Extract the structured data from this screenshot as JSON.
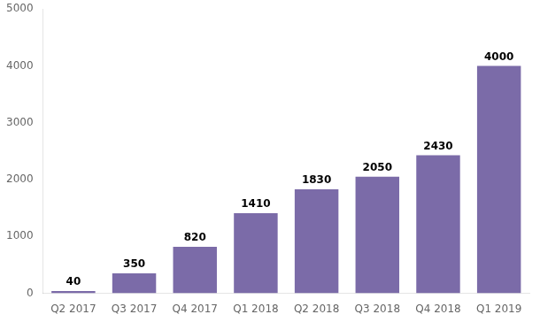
{
  "chart_data": {
    "type": "bar",
    "categories": [
      "Q2 2017",
      "Q3 2017",
      "Q4 2017",
      "Q1 2018",
      "Q2 2018",
      "Q3 2018",
      "Q4 2018",
      "Q1 2019"
    ],
    "values": [
      40,
      350,
      820,
      1410,
      1830,
      2050,
      2430,
      4000
    ],
    "color": "#7B6BA8",
    "ylim": [
      0,
      5000
    ],
    "yticks": [
      0,
      1000,
      2000,
      3000,
      4000,
      5000
    ],
    "grid": false,
    "data_labels": true
  }
}
